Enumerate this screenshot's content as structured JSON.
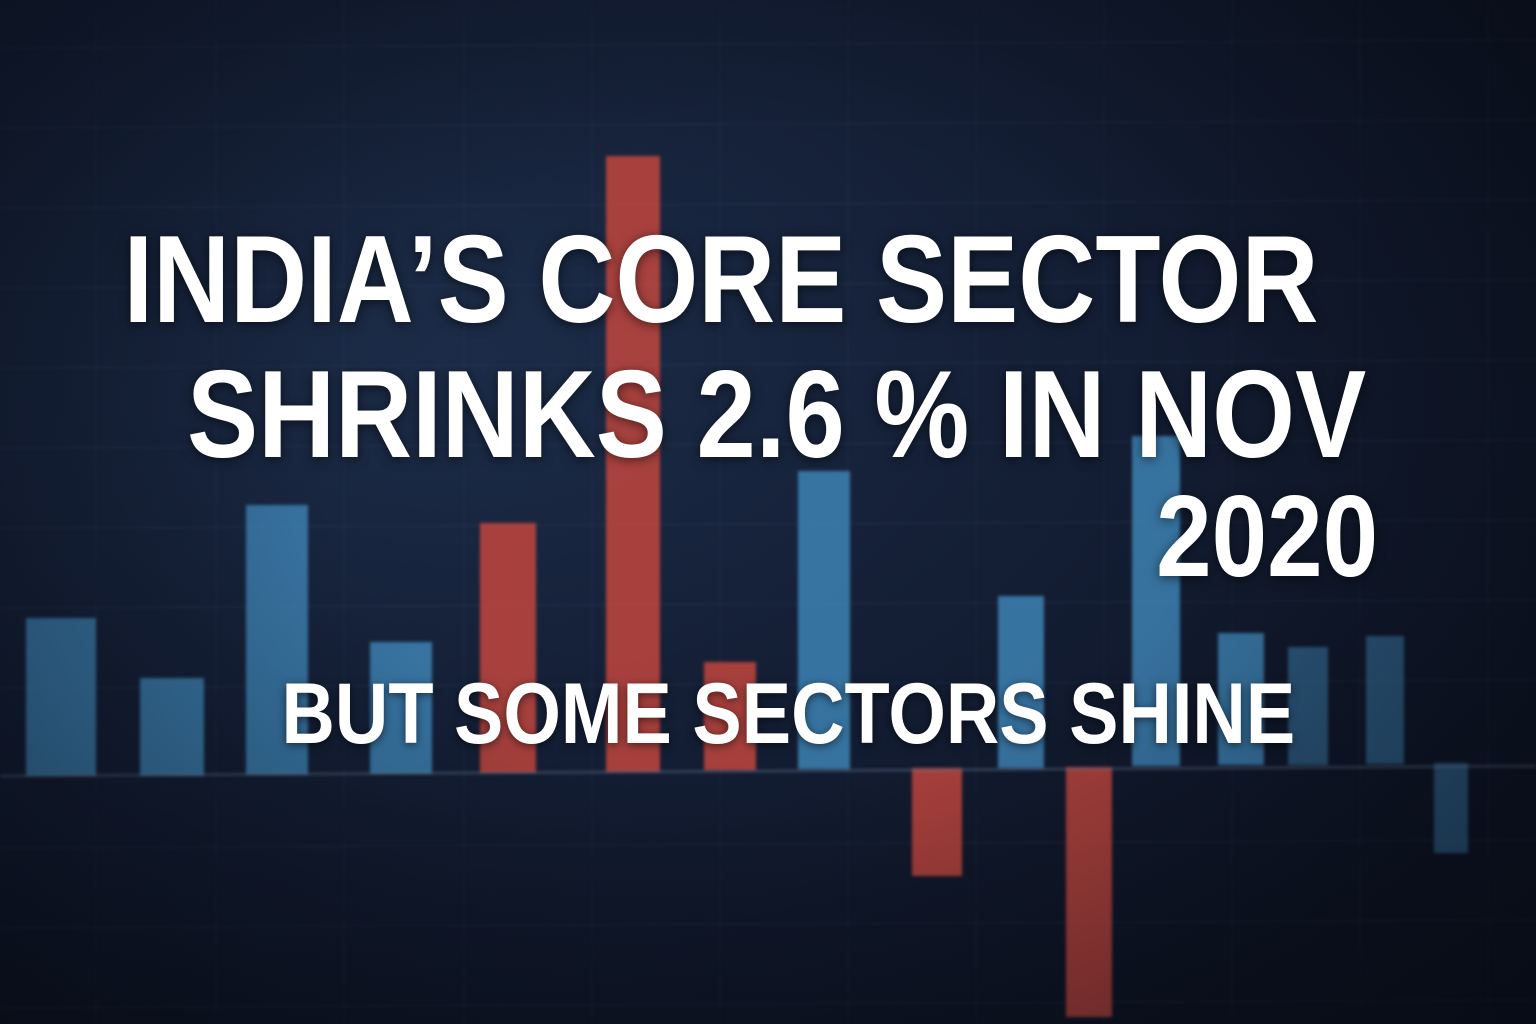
{
  "headline": {
    "line1": "INDIA’S CORE SECTOR",
    "line2": "SHRINKS 2.6 % IN NOV",
    "line3": "2020"
  },
  "subheadline": "BUT SOME SECTORS SHINE",
  "background_chart": {
    "type": "bar",
    "positive_color": "#3f86b8",
    "negative_color": "#c8483e",
    "bars": [
      {
        "value": 158,
        "color": "positive"
      },
      {
        "value": 98,
        "color": "positive"
      },
      {
        "value": 270,
        "color": "positive"
      },
      {
        "value": 132,
        "color": "positive"
      },
      {
        "value": 250,
        "color": "negative"
      },
      {
        "value": 616,
        "color": "negative"
      },
      {
        "value": 108,
        "color": "negative"
      },
      {
        "value": 298,
        "color": "positive"
      },
      {
        "value": -108,
        "color": "negative"
      },
      {
        "value": 172,
        "color": "positive"
      },
      {
        "value": -250,
        "color": "negative"
      },
      {
        "value": 330,
        "color": "positive"
      },
      {
        "value": 132,
        "color": "positive"
      },
      {
        "value": 118,
        "color": "positive"
      },
      {
        "value": 128,
        "color": "positive"
      },
      {
        "value": -90,
        "color": "positive"
      }
    ]
  }
}
